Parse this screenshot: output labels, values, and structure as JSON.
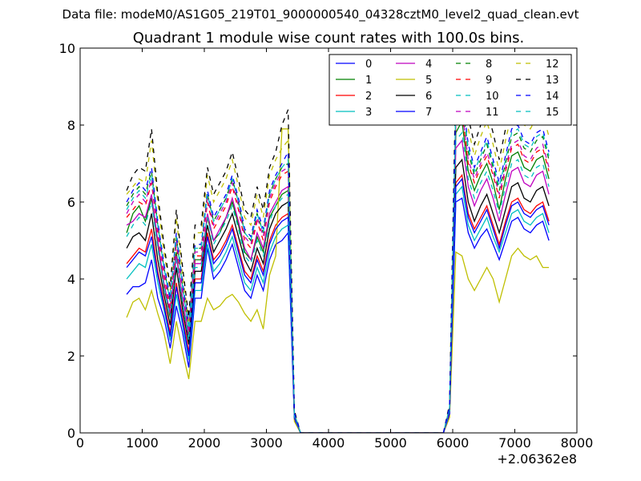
{
  "figure": {
    "suptitle": "Data file: modeM0/AS1G05_219T01_9000000540_04328cztM0_level2_quad_clean.evt"
  },
  "chart_data": {
    "type": "line",
    "title": "Quadrant 1 module wise count rates with 100.0s bins.",
    "xlabel": "",
    "ylabel": "",
    "offset_text": "+2.06362e8",
    "xlim": [
      0,
      8000
    ],
    "ylim": [
      0,
      10
    ],
    "xticks": [
      0,
      1000,
      2000,
      3000,
      4000,
      5000,
      6000,
      7000,
      8000
    ],
    "yticks": [
      0,
      2,
      4,
      6,
      8,
      10
    ],
    "grid": false,
    "legend_position": "top-right",
    "legend_columns": 4,
    "x": [
      750,
      850,
      950,
      1050,
      1150,
      1250,
      1350,
      1450,
      1550,
      1650,
      1750,
      1850,
      1950,
      2050,
      2150,
      2250,
      2350,
      2450,
      2550,
      2650,
      2750,
      2850,
      2950,
      3050,
      3150,
      3250,
      3350,
      3450,
      3550,
      3650,
      3750,
      3850,
      3950,
      4050,
      4150,
      4250,
      4350,
      4450,
      4550,
      4650,
      4750,
      4850,
      4950,
      5050,
      5150,
      5250,
      5350,
      5450,
      5550,
      5650,
      5750,
      5850,
      5950,
      6050,
      6150,
      6250,
      6350,
      6450,
      6550,
      6650,
      6750,
      6850,
      6950,
      7050,
      7150,
      7250,
      7350,
      7450,
      7550
    ],
    "series": [
      {
        "name": "0",
        "color": "#0000ff",
        "dash": "solid",
        "values": [
          3.6,
          3.8,
          3.8,
          3.9,
          4.5,
          3.5,
          3.0,
          2.2,
          3.3,
          2.6,
          1.7,
          3.5,
          3.5,
          4.8,
          4.0,
          4.2,
          4.5,
          4.9,
          4.3,
          3.7,
          3.5,
          4.1,
          3.7,
          4.5,
          4.9,
          5.0,
          5.2,
          0.35,
          0,
          0,
          0,
          0,
          0,
          0,
          0,
          0,
          0,
          0,
          0,
          0,
          0,
          0,
          0,
          0,
          0,
          0,
          0,
          0,
          0,
          0,
          0,
          0,
          0.5,
          6.0,
          6.1,
          5.2,
          4.8,
          5.1,
          5.3,
          4.9,
          4.5,
          5.0,
          5.5,
          5.6,
          5.3,
          5.2,
          5.4,
          5.5,
          5.0
        ]
      },
      {
        "name": "1",
        "color": "#008000",
        "dash": "solid",
        "values": [
          5.2,
          5.7,
          5.9,
          5.5,
          6.1,
          4.9,
          3.8,
          3.0,
          4.7,
          3.4,
          2.5,
          4.5,
          4.5,
          5.6,
          5.0,
          5.2,
          5.6,
          6.0,
          5.4,
          4.7,
          4.5,
          5.1,
          4.7,
          5.6,
          5.9,
          6.2,
          6.3,
          0.45,
          0,
          0,
          0,
          0,
          0,
          0,
          0,
          0,
          0,
          0,
          0,
          0,
          0,
          0,
          0,
          0,
          0,
          0,
          0,
          0,
          0,
          0,
          0,
          0,
          0.6,
          7.8,
          8.1,
          6.8,
          6.3,
          6.7,
          7.0,
          6.5,
          5.8,
          6.6,
          7.2,
          7.3,
          6.9,
          6.8,
          7.1,
          7.2,
          6.6
        ]
      },
      {
        "name": "2",
        "color": "#ff0000",
        "dash": "solid",
        "values": [
          4.4,
          4.6,
          4.8,
          4.7,
          5.3,
          4.2,
          3.4,
          2.6,
          3.9,
          3.0,
          2.1,
          4.0,
          4.0,
          5.2,
          4.5,
          4.7,
          5.0,
          5.4,
          4.8,
          4.2,
          4.0,
          4.6,
          4.2,
          5.0,
          5.4,
          5.6,
          5.7,
          0.4,
          0,
          0,
          0,
          0,
          0,
          0,
          0,
          0,
          0,
          0,
          0,
          0,
          0,
          0,
          0,
          0,
          0,
          0,
          0,
          0,
          0,
          0,
          0,
          0,
          0.55,
          6.5,
          6.7,
          5.7,
          5.3,
          5.6,
          5.9,
          5.4,
          4.9,
          5.5,
          6.0,
          6.1,
          5.8,
          5.7,
          5.9,
          6.0,
          5.5
        ]
      },
      {
        "name": "3",
        "color": "#00bfbf",
        "dash": "solid",
        "values": [
          4.0,
          4.2,
          4.4,
          4.3,
          4.9,
          3.9,
          3.2,
          2.4,
          3.6,
          2.8,
          1.9,
          3.7,
          3.7,
          4.9,
          4.2,
          4.4,
          4.7,
          5.1,
          4.5,
          3.9,
          3.7,
          4.3,
          3.9,
          4.7,
          5.1,
          5.3,
          5.4,
          0.38,
          0,
          0,
          0,
          0,
          0,
          0,
          0,
          0,
          0,
          0,
          0,
          0,
          0,
          0,
          0,
          0,
          0,
          0,
          0,
          0,
          0,
          0,
          0,
          0,
          0.5,
          6.2,
          6.4,
          5.4,
          5.0,
          5.3,
          5.6,
          5.1,
          4.7,
          5.2,
          5.7,
          5.8,
          5.5,
          5.4,
          5.6,
          5.7,
          5.2
        ]
      },
      {
        "name": "4",
        "color": "#bf00bf",
        "dash": "solid",
        "values": [
          5.4,
          5.5,
          5.7,
          5.6,
          6.2,
          5.0,
          3.9,
          3.1,
          4.6,
          3.5,
          2.4,
          4.4,
          4.4,
          5.7,
          5.0,
          5.3,
          5.6,
          6.1,
          5.5,
          4.8,
          4.5,
          5.2,
          4.8,
          5.7,
          6.0,
          6.3,
          6.4,
          0.45,
          0,
          0,
          0,
          0,
          0,
          0,
          0,
          0,
          0,
          0,
          0,
          0,
          0,
          0,
          0,
          0,
          0,
          0,
          0,
          0,
          0,
          0,
          0,
          0,
          0.6,
          7.4,
          7.6,
          6.4,
          5.9,
          6.3,
          6.6,
          6.1,
          5.5,
          6.2,
          6.8,
          6.9,
          6.5,
          6.4,
          6.7,
          6.8,
          6.2
        ]
      },
      {
        "name": "5",
        "color": "#bfbf00",
        "dash": "solid",
        "values": [
          3.0,
          3.4,
          3.5,
          3.2,
          3.7,
          3.1,
          2.6,
          1.8,
          2.9,
          2.1,
          1.4,
          2.9,
          2.9,
          3.5,
          3.2,
          3.3,
          3.5,
          3.6,
          3.4,
          3.1,
          2.9,
          3.2,
          2.7,
          4.1,
          4.6,
          7.9,
          7.9,
          0.3,
          0,
          0,
          0,
          0,
          0,
          0,
          0,
          0,
          0,
          0,
          0,
          0,
          0,
          0,
          0,
          0,
          0,
          0,
          0,
          0,
          0,
          0,
          0,
          0,
          0.4,
          4.7,
          4.6,
          4.0,
          3.7,
          4.0,
          4.3,
          4.0,
          3.4,
          4.0,
          4.6,
          4.8,
          4.6,
          4.5,
          4.6,
          4.3,
          4.3
        ]
      },
      {
        "name": "6",
        "color": "#000000",
        "dash": "solid",
        "values": [
          4.8,
          5.1,
          5.2,
          5.0,
          5.7,
          4.5,
          3.6,
          2.8,
          4.3,
          3.2,
          2.3,
          4.2,
          4.2,
          5.4,
          4.7,
          5.0,
          5.3,
          5.7,
          5.1,
          4.5,
          4.2,
          4.8,
          4.4,
          5.3,
          5.7,
          5.9,
          6.0,
          0.42,
          0,
          0,
          0,
          0,
          0,
          0,
          0,
          0,
          0,
          0,
          0,
          0,
          0,
          0,
          0,
          0,
          0,
          0,
          0,
          0,
          0,
          0,
          0,
          0,
          0.55,
          6.9,
          7.1,
          6.0,
          5.5,
          5.9,
          6.2,
          5.7,
          5.2,
          5.8,
          6.4,
          6.5,
          6.1,
          6.0,
          6.3,
          6.4,
          5.9
        ]
      },
      {
        "name": "7",
        "color": "#0000ff",
        "dash": "solid",
        "values": [
          4.3,
          4.5,
          4.7,
          4.6,
          5.1,
          4.1,
          3.3,
          2.5,
          3.8,
          2.9,
          2.0,
          3.9,
          3.9,
          5.1,
          4.4,
          4.6,
          4.9,
          5.3,
          4.7,
          4.1,
          3.9,
          4.5,
          4.1,
          4.9,
          5.3,
          5.5,
          5.6,
          0.39,
          0,
          0,
          0,
          0,
          0,
          0,
          0,
          0,
          0,
          0,
          0,
          0,
          0,
          0,
          0,
          0,
          0,
          0,
          0,
          0,
          0,
          0,
          0,
          0,
          0.5,
          6.4,
          6.6,
          5.6,
          5.2,
          5.5,
          5.8,
          5.3,
          4.8,
          5.4,
          5.9,
          6.0,
          5.7,
          5.6,
          5.8,
          5.9,
          5.4
        ]
      },
      {
        "name": "8",
        "color": "#008000",
        "dash": "dashed",
        "values": [
          5.9,
          6.2,
          6.4,
          6.2,
          6.8,
          5.4,
          4.3,
          3.4,
          5.1,
          3.8,
          2.7,
          4.8,
          4.8,
          6.2,
          5.5,
          5.8,
          6.1,
          6.6,
          6.0,
          5.2,
          5.0,
          5.7,
          5.2,
          6.2,
          6.6,
          6.9,
          7.0,
          0.5,
          0,
          0,
          0,
          0,
          0,
          0,
          0,
          0,
          0,
          0,
          0,
          0,
          0,
          0,
          0,
          0,
          0,
          0,
          0,
          0,
          0,
          0,
          0,
          0,
          0.65,
          8.4,
          8.6,
          7.3,
          6.7,
          7.1,
          7.5,
          6.9,
          6.3,
          7.0,
          7.7,
          7.8,
          7.4,
          7.3,
          7.6,
          7.7,
          7.1
        ]
      },
      {
        "name": "9",
        "color": "#ff0000",
        "dash": "dashed",
        "values": [
          5.6,
          5.8,
          6.0,
          5.9,
          6.5,
          5.2,
          4.1,
          3.2,
          4.9,
          3.7,
          2.6,
          4.6,
          4.6,
          6.0,
          5.3,
          5.6,
          5.9,
          6.4,
          5.8,
          5.0,
          4.8,
          5.5,
          5.0,
          6.0,
          6.4,
          6.7,
          6.8,
          0.48,
          0,
          0,
          0,
          0,
          0,
          0,
          0,
          0,
          0,
          0,
          0,
          0,
          0,
          0,
          0,
          0,
          0,
          0,
          0,
          0,
          0,
          0,
          0,
          0,
          0.62,
          8.1,
          8.3,
          7.0,
          6.5,
          6.9,
          7.2,
          6.7,
          6.1,
          6.8,
          7.4,
          7.5,
          7.1,
          7.0,
          7.3,
          7.4,
          6.8
        ]
      },
      {
        "name": "10",
        "color": "#00bfbf",
        "dash": "dashed",
        "values": [
          5.1,
          5.4,
          5.6,
          5.4,
          6.0,
          4.8,
          3.8,
          3.0,
          4.5,
          3.4,
          2.4,
          4.3,
          4.3,
          5.6,
          4.9,
          5.2,
          5.5,
          5.9,
          5.3,
          4.6,
          4.4,
          5.0,
          4.6,
          5.5,
          5.9,
          6.1,
          6.2,
          0.44,
          0,
          0,
          0,
          0,
          0,
          0,
          0,
          0,
          0,
          0,
          0,
          0,
          0,
          0,
          0,
          0,
          0,
          0,
          0,
          0,
          0,
          0,
          0,
          0,
          0.58,
          7.6,
          7.8,
          6.6,
          6.1,
          6.5,
          6.8,
          6.3,
          5.7,
          6.4,
          7.0,
          7.1,
          6.7,
          6.6,
          6.9,
          7.0,
          6.4
        ]
      },
      {
        "name": "11",
        "color": "#bf00bf",
        "dash": "dashed",
        "values": [
          5.7,
          6.0,
          6.2,
          6.0,
          6.6,
          5.3,
          4.2,
          3.3,
          5.0,
          3.7,
          2.6,
          4.7,
          4.7,
          6.1,
          5.4,
          5.7,
          6.0,
          6.5,
          5.9,
          5.1,
          4.9,
          5.6,
          5.1,
          6.1,
          6.5,
          6.8,
          6.9,
          0.49,
          0,
          0,
          0,
          0,
          0,
          0,
          0,
          0,
          0,
          0,
          0,
          0,
          0,
          0,
          0,
          0,
          0,
          0,
          0,
          0,
          0,
          0,
          0,
          0,
          0.63,
          8.2,
          8.4,
          7.1,
          6.6,
          7.0,
          7.3,
          6.8,
          6.2,
          6.9,
          7.5,
          7.6,
          7.2,
          7.1,
          7.4,
          7.5,
          6.9
        ]
      },
      {
        "name": "12",
        "color": "#bfbf00",
        "dash": "dashed",
        "values": [
          6.2,
          6.4,
          6.6,
          6.5,
          7.6,
          6.0,
          4.7,
          3.7,
          5.6,
          4.1,
          2.9,
          5.2,
          5.2,
          6.7,
          6.0,
          6.3,
          6.6,
          7.1,
          6.4,
          5.6,
          5.4,
          6.2,
          5.6,
          6.7,
          7.1,
          7.4,
          7.6,
          0.55,
          0,
          0,
          0,
          0,
          0,
          0,
          0,
          0,
          0,
          0,
          0,
          0,
          0,
          0,
          0,
          0,
          0,
          0,
          0,
          0,
          0,
          0,
          0,
          0,
          0.7,
          9.0,
          9.3,
          7.9,
          7.2,
          7.7,
          8.1,
          7.5,
          6.8,
          7.6,
          8.3,
          8.5,
          8.0,
          7.9,
          8.2,
          8.3,
          7.7
        ]
      },
      {
        "name": "13",
        "color": "#000000",
        "dash": "dashed",
        "values": [
          6.3,
          6.7,
          6.9,
          6.8,
          7.9,
          6.2,
          4.9,
          3.8,
          5.8,
          4.3,
          3.0,
          5.4,
          5.4,
          6.9,
          6.2,
          6.5,
          6.8,
          7.3,
          6.6,
          5.8,
          5.6,
          6.4,
          5.8,
          6.9,
          7.3,
          8.0,
          8.4,
          0.58,
          0,
          0,
          0,
          0,
          0,
          0,
          0,
          0,
          0,
          0,
          0,
          0,
          0,
          0,
          0,
          0,
          0,
          0,
          0,
          0,
          0,
          0,
          0,
          0,
          0.75,
          9.3,
          9.6,
          8.2,
          7.5,
          8.0,
          8.4,
          7.8,
          7.1,
          7.9,
          8.6,
          8.8,
          8.3,
          8.2,
          8.5,
          8.6,
          8.0
        ]
      },
      {
        "name": "14",
        "color": "#0000ff",
        "dash": "dashed",
        "values": [
          6.0,
          6.3,
          6.5,
          6.3,
          6.9,
          5.5,
          4.4,
          3.5,
          5.2,
          3.9,
          2.8,
          4.9,
          4.9,
          6.3,
          5.6,
          5.9,
          6.2,
          6.7,
          6.1,
          5.3,
          5.1,
          5.8,
          5.3,
          6.3,
          6.7,
          7.0,
          7.3,
          0.52,
          0,
          0,
          0,
          0,
          0,
          0,
          0,
          0,
          0,
          0,
          0,
          0,
          0,
          0,
          0,
          0,
          0,
          0,
          0,
          0,
          0,
          0,
          0,
          0,
          0.68,
          8.6,
          8.8,
          7.5,
          6.9,
          7.3,
          7.7,
          7.1,
          6.5,
          7.2,
          7.9,
          8.0,
          7.6,
          7.5,
          7.8,
          7.9,
          7.3
        ]
      },
      {
        "name": "15",
        "color": "#00bfbf",
        "dash": "dashed",
        "values": [
          5.8,
          6.1,
          6.3,
          6.1,
          6.7,
          5.4,
          4.3,
          3.4,
          5.1,
          3.8,
          2.7,
          4.8,
          4.8,
          6.2,
          5.5,
          5.8,
          6.1,
          6.6,
          6.0,
          5.2,
          5.0,
          5.7,
          5.2,
          6.2,
          6.6,
          6.9,
          7.1,
          0.5,
          0,
          0,
          0,
          0,
          0,
          0,
          0,
          0,
          0,
          0,
          0,
          0,
          0,
          0,
          0,
          0,
          0,
          0,
          0,
          0,
          0,
          0,
          0,
          0,
          0.66,
          8.5,
          8.7,
          7.4,
          6.8,
          7.2,
          7.6,
          7.0,
          6.4,
          7.1,
          7.8,
          7.9,
          7.5,
          7.4,
          7.7,
          7.8,
          7.2
        ]
      }
    ]
  }
}
